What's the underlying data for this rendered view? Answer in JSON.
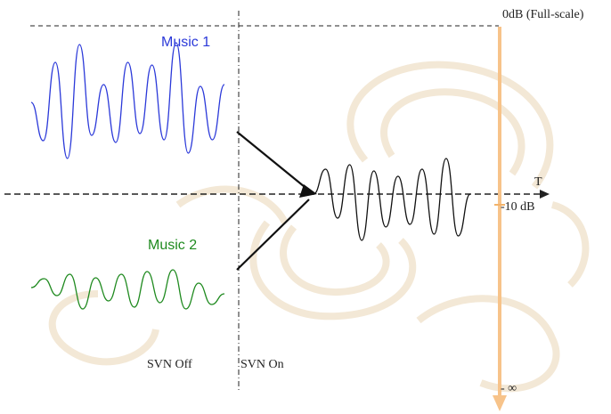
{
  "labels": {
    "top_scale": "0dB (Full-scale)",
    "music1": "Music 1",
    "music2": "Music 2",
    "time_axis": "T",
    "minus10": "-10 dB",
    "svn_off": "SVN Off",
    "svn_on": "SVN On",
    "minus_inf": "- ∞"
  },
  "colors": {
    "music1": "#2b39d9",
    "music2": "#1f8a1f",
    "output": "#111111",
    "level_arrow": "#f7c38a",
    "dashed": "#222222",
    "watermark": "#f3e8d6"
  }
}
